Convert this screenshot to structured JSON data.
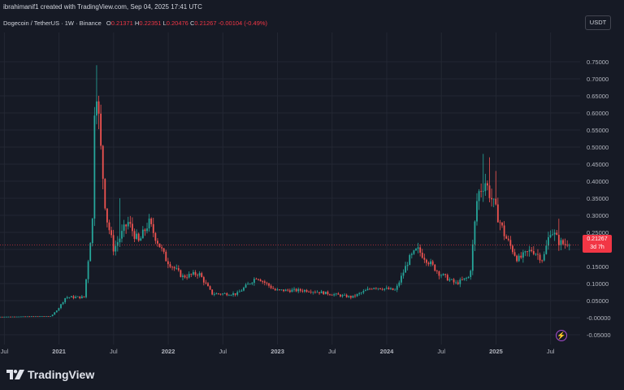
{
  "header": {
    "credit": "ibrahimanif1 created with TradingView.com, Sep 04, 2025 17:41 UTC",
    "symbol": "Dogecoin / TetherUS · 1W · Binance",
    "o_label": "O",
    "o_value": "0.21371",
    "h_label": "H",
    "h_value": "0.22351",
    "l_label": "L",
    "l_value": "0.20476",
    "c_label": "C",
    "c_value": "0.21267",
    "change": "-0.00104 (-0.49%)",
    "currency_button": "USDT"
  },
  "price_badge": {
    "price": "0.21267",
    "countdown": "3d 7h"
  },
  "branding": {
    "logo_text": "TradingView"
  },
  "colors": {
    "up": "#26a69a",
    "down": "#ef5350",
    "background": "#161a25",
    "grid": "#232733",
    "badge": "#f23645"
  },
  "icons": [
    "tradingview-logo-icon",
    "flash-icon"
  ],
  "chart_data": {
    "type": "candlestick",
    "title": "",
    "y_axis": {
      "ticks": [
        "0.75000",
        "0.70000",
        "0.65000",
        "0.60000",
        "0.55000",
        "0.50000",
        "0.45000",
        "0.40000",
        "0.35000",
        "0.30000",
        "0.25000",
        "0.20000",
        "0.15000",
        "0.10000",
        "0.05000",
        "-0.00000",
        "-0.05000"
      ],
      "tick_values": [
        0.75,
        0.7,
        0.65,
        0.6,
        0.55,
        0.5,
        0.45,
        0.4,
        0.35,
        0.3,
        0.25,
        0.2,
        0.15,
        0.1,
        0.05,
        0,
        -0.05
      ],
      "range": [
        -0.06,
        0.78
      ]
    },
    "x_axis": {
      "ticks": [
        "Jul",
        "2021",
        "Jul",
        "2022",
        "Jul",
        "2023",
        "Jul",
        "2024",
        "Jul",
        "2025",
        "Jul"
      ],
      "tick_dates": [
        2020.5,
        2021.0,
        2021.5,
        2022.0,
        2022.5,
        2023.0,
        2023.5,
        2024.0,
        2024.5,
        2025.0,
        2025.5
      ],
      "range": [
        2020.46,
        2025.77
      ]
    },
    "grid": true,
    "last_price": 0.21267,
    "key_points": [
      {
        "date": 2020.46,
        "price": 0.0026
      },
      {
        "date": 2020.95,
        "price": 0.0047
      },
      {
        "date": 2021.02,
        "price": 0.03
      },
      {
        "date": 2021.08,
        "price": 0.06
      },
      {
        "date": 2021.25,
        "price": 0.06
      },
      {
        "date": 2021.33,
        "price": 0.3
      },
      {
        "date": 2021.35,
        "price": 0.74
      },
      {
        "date": 2021.4,
        "price": 0.5
      },
      {
        "date": 2021.45,
        "price": 0.3
      },
      {
        "date": 2021.52,
        "price": 0.2
      },
      {
        "date": 2021.65,
        "price": 0.28
      },
      {
        "date": 2021.75,
        "price": 0.22
      },
      {
        "date": 2021.84,
        "price": 0.28
      },
      {
        "date": 2022.0,
        "price": 0.17
      },
      {
        "date": 2022.15,
        "price": 0.12
      },
      {
        "date": 2022.3,
        "price": 0.13
      },
      {
        "date": 2022.42,
        "price": 0.07
      },
      {
        "date": 2022.65,
        "price": 0.07
      },
      {
        "date": 2022.83,
        "price": 0.12
      },
      {
        "date": 2023.0,
        "price": 0.08
      },
      {
        "date": 2023.3,
        "price": 0.08
      },
      {
        "date": 2023.5,
        "price": 0.07
      },
      {
        "date": 2023.7,
        "price": 0.06
      },
      {
        "date": 2023.9,
        "price": 0.09
      },
      {
        "date": 2024.1,
        "price": 0.08
      },
      {
        "date": 2024.22,
        "price": 0.17
      },
      {
        "date": 2024.3,
        "price": 0.2
      },
      {
        "date": 2024.5,
        "price": 0.13
      },
      {
        "date": 2024.65,
        "price": 0.1
      },
      {
        "date": 2024.78,
        "price": 0.12
      },
      {
        "date": 2024.85,
        "price": 0.36
      },
      {
        "date": 2024.92,
        "price": 0.4
      },
      {
        "date": 2025.0,
        "price": 0.33
      },
      {
        "date": 2025.1,
        "price": 0.24
      },
      {
        "date": 2025.22,
        "price": 0.17
      },
      {
        "date": 2025.35,
        "price": 0.2
      },
      {
        "date": 2025.45,
        "price": 0.17
      },
      {
        "date": 2025.52,
        "price": 0.26
      },
      {
        "date": 2025.6,
        "price": 0.22
      },
      {
        "date": 2025.68,
        "price": 0.2127
      }
    ],
    "spikes": [
      {
        "date": 2021.35,
        "high": 0.74
      },
      {
        "date": 2021.37,
        "high": 0.59
      },
      {
        "date": 2021.56,
        "high": 0.35
      },
      {
        "date": 2024.88,
        "high": 0.48
      },
      {
        "date": 2024.94,
        "high": 0.47
      },
      {
        "date": 2025.0,
        "high": 0.43
      },
      {
        "date": 2025.58,
        "high": 0.29
      }
    ]
  }
}
